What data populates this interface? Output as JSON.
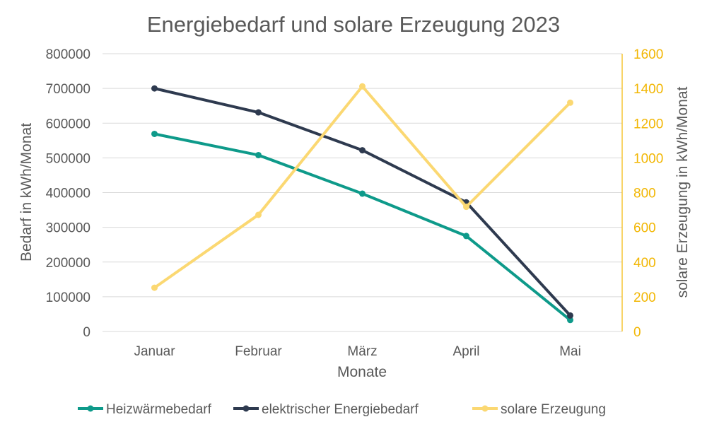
{
  "chart_data": {
    "type": "line",
    "title": "Energiebedarf und solare Erzeugung 2023",
    "xlabel": "Monate",
    "ylabel": "Bedarf in kWh/Monat",
    "y2label": "solare Erzeugung in kWh/Monat",
    "categories": [
      "Januar",
      "Februar",
      "März",
      "April",
      "Mai"
    ],
    "ylim": [
      0,
      800000
    ],
    "y_ticks": [
      "0",
      "100000",
      "200000",
      "300000",
      "400000",
      "500000",
      "600000",
      "700000",
      "800000"
    ],
    "y2lim": [
      0,
      1600
    ],
    "y2_ticks": [
      "0",
      "200",
      "400",
      "600",
      "800",
      "1000",
      "1200",
      "1400",
      "1600"
    ],
    "grid": true,
    "legend_position": "bottom",
    "series": [
      {
        "name": "Heizwärmebedarf",
        "axis": "left",
        "color": "#0e9a8a",
        "values": [
          569000,
          508000,
          397000,
          275000,
          33000
        ]
      },
      {
        "name": "elektrischer Energiebedarf",
        "axis": "left",
        "color": "#2e3a4f",
        "values": [
          700000,
          631000,
          522000,
          372000,
          46000
        ]
      },
      {
        "name": "solare Erzeugung",
        "axis": "right",
        "color": "#fbd872",
        "values": [
          252,
          672,
          1412,
          718,
          1318
        ]
      }
    ],
    "colors": {
      "text": "#595959",
      "grid": "#d9d9d9",
      "right_axis": "#f2b705"
    }
  }
}
